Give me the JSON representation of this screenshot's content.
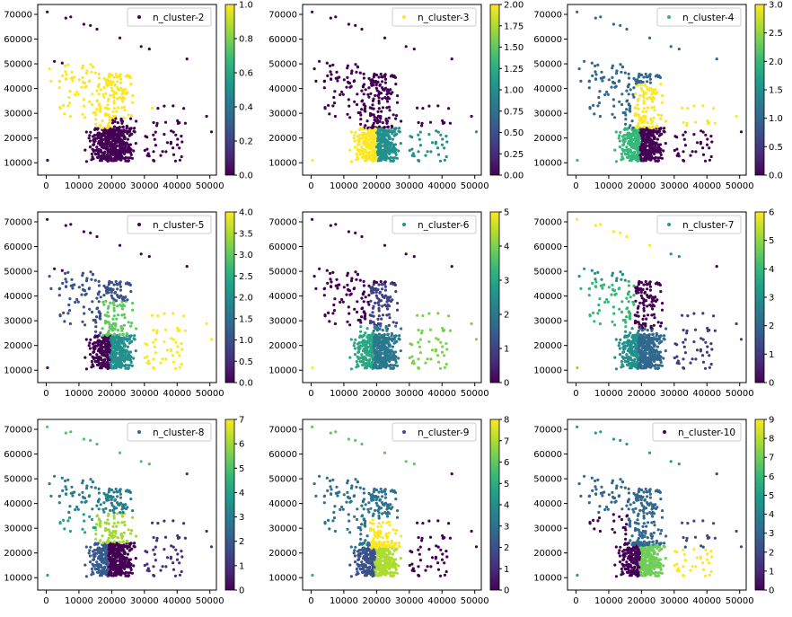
{
  "figure": {
    "x_ticks": [
      "0",
      "10000",
      "20000",
      "30000",
      "40000",
      "50000"
    ],
    "y_ticks": [
      "10000",
      "20000",
      "30000",
      "40000",
      "50000",
      "60000",
      "70000"
    ],
    "xlim": [
      -2600,
      52000
    ],
    "ylim": [
      5000,
      74000
    ],
    "colormap": "viridis",
    "colormap_stops": [
      "#440154",
      "#482878",
      "#3e4989",
      "#31688e",
      "#26828e",
      "#1f9e89",
      "#35b779",
      "#6ece58",
      "#b5de2b",
      "#fde725"
    ]
  },
  "chart_data": [
    {
      "type": "scatter",
      "legend": "n_cluster-2",
      "legend_color": "#440154",
      "k": 2,
      "colorbar_ticks": [
        "0.0",
        "0.2",
        "0.4",
        "0.6",
        "0.8",
        "1.0"
      ],
      "colorbar_range": [
        0,
        1
      ]
    },
    {
      "type": "scatter",
      "legend": "n_cluster-3",
      "legend_color": "#fde725",
      "k": 3,
      "colorbar_ticks": [
        "0.00",
        "0.25",
        "0.50",
        "0.75",
        "1.00",
        "1.25",
        "1.50",
        "1.75",
        "2.00"
      ],
      "colorbar_range": [
        0,
        2
      ]
    },
    {
      "type": "scatter",
      "legend": "n_cluster-4",
      "legend_color": "#35b779",
      "k": 4,
      "colorbar_ticks": [
        "0.0",
        "0.5",
        "1.0",
        "1.5",
        "2.0",
        "2.5",
        "3.0"
      ],
      "colorbar_range": [
        0,
        3
      ]
    },
    {
      "type": "scatter",
      "legend": "n_cluster-5",
      "legend_color": "#440154",
      "k": 5,
      "colorbar_ticks": [
        "0.0",
        "0.5",
        "1.0",
        "1.5",
        "2.0",
        "2.5",
        "3.0",
        "3.5",
        "4.0"
      ],
      "colorbar_range": [
        0,
        4
      ]
    },
    {
      "type": "scatter",
      "legend": "n_cluster-6",
      "legend_color": "#21918c",
      "k": 6,
      "colorbar_ticks": [
        "0",
        "1",
        "2",
        "3",
        "4",
        "5"
      ],
      "colorbar_range": [
        0,
        5
      ]
    },
    {
      "type": "scatter",
      "legend": "n_cluster-7",
      "legend_color": "#1f9e89",
      "k": 7,
      "colorbar_ticks": [
        "0",
        "1",
        "2",
        "3",
        "4",
        "5",
        "6"
      ],
      "colorbar_range": [
        0,
        6
      ]
    },
    {
      "type": "scatter",
      "legend": "n_cluster-8",
      "legend_color": "#31688e",
      "k": 8,
      "colorbar_ticks": [
        "0",
        "1",
        "2",
        "3",
        "4",
        "5",
        "6",
        "7"
      ],
      "colorbar_range": [
        0,
        7
      ]
    },
    {
      "type": "scatter",
      "legend": "n_cluster-9",
      "legend_color": "#3e4989",
      "k": 9,
      "colorbar_ticks": [
        "0",
        "1",
        "2",
        "3",
        "4",
        "5",
        "6",
        "7",
        "8"
      ],
      "colorbar_range": [
        0,
        8
      ]
    },
    {
      "type": "scatter",
      "legend": "n_cluster-10",
      "legend_color": "#440154",
      "k": 10,
      "colorbar_ticks": [
        "0",
        "1",
        "2",
        "3",
        "4",
        "5",
        "6",
        "7",
        "8",
        "9"
      ],
      "colorbar_range": [
        0,
        9
      ]
    }
  ]
}
